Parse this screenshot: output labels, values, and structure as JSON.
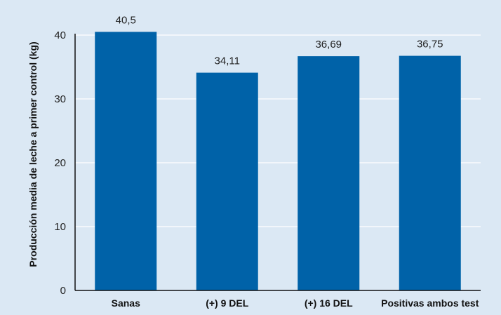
{
  "chart_data": {
    "type": "bar",
    "categories": [
      "Sanas",
      "(+) 9 DEL",
      "(+) 16 DEL",
      "Positivas ambos test"
    ],
    "values": [
      40.5,
      34.11,
      36.69,
      36.75
    ],
    "value_labels": [
      "40,5",
      "34,11",
      "36,69",
      "36,75"
    ],
    "ylabel": "Producción media de leche a primer control (kg)",
    "ylim": [
      0,
      40
    ],
    "yticks": [
      0,
      10,
      20,
      30,
      40
    ],
    "grid": true,
    "bar_color": "#0062a8",
    "grid_color": "#ffffff",
    "background": "#dbe8f4"
  }
}
